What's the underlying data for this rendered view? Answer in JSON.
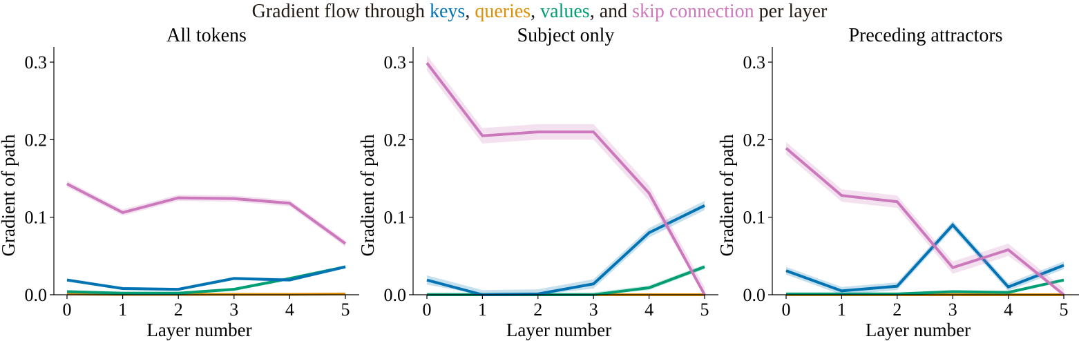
{
  "figure": {
    "title_parts": [
      {
        "text": "Gradient flow through ",
        "color": "#231a14"
      },
      {
        "text": "keys",
        "color": "#0173b2"
      },
      {
        "text": ", ",
        "color": "#231a14"
      },
      {
        "text": "queries",
        "color": "#de8f05"
      },
      {
        "text": ", ",
        "color": "#231a14"
      },
      {
        "text": "values",
        "color": "#029e73"
      },
      {
        "text": ", and ",
        "color": "#231a14"
      },
      {
        "text": "skip connection",
        "color": "#cc78bc"
      },
      {
        "text": " per layer",
        "color": "#231a14"
      }
    ]
  },
  "colors": {
    "keys": "#0173b2",
    "queries": "#de8f05",
    "values": "#029e73",
    "skip": "#cc78bc"
  },
  "chart_data": [
    {
      "type": "line",
      "title": "All tokens",
      "xlabel": "Layer number",
      "ylabel": "Gradient of path",
      "x": [
        0,
        1,
        2,
        3,
        4,
        5
      ],
      "xticks": [
        "0",
        "1",
        "2",
        "3",
        "4",
        "5"
      ],
      "yticks": [
        "0.0",
        "0.1",
        "0.2",
        "0.3"
      ],
      "ylim": [
        0,
        0.32
      ],
      "grid": false,
      "series": [
        {
          "name": "keys",
          "values": [
            0.019,
            0.008,
            0.007,
            0.021,
            0.019,
            0.036
          ],
          "ci": 0.002
        },
        {
          "name": "queries",
          "values": [
            0.001,
            0.0005,
            0.0005,
            0.0005,
            0.0005,
            0.001
          ],
          "ci": 0.0005
        },
        {
          "name": "values",
          "values": [
            0.004,
            0.002,
            0.002,
            0.007,
            0.021,
            0.036
          ],
          "ci": 0.002
        },
        {
          "name": "skip connection",
          "values": [
            0.143,
            0.106,
            0.125,
            0.124,
            0.118,
            0.066
          ],
          "ci": 0.004
        }
      ]
    },
    {
      "type": "line",
      "title": "Subject only",
      "xlabel": "Layer number",
      "ylabel": "Gradient of path",
      "x": [
        0,
        1,
        2,
        3,
        4,
        5
      ],
      "xticks": [
        "0",
        "1",
        "2",
        "3",
        "4",
        "5"
      ],
      "yticks": [
        "0.0",
        "0.1",
        "0.2",
        "0.3"
      ],
      "ylim": [
        0,
        0.32
      ],
      "grid": false,
      "series": [
        {
          "name": "keys",
          "values": [
            0.019,
            0.0,
            0.001,
            0.014,
            0.08,
            0.115
          ],
          "ci": 0.006
        },
        {
          "name": "queries",
          "values": [
            0.0,
            0.0,
            0.0,
            0.0,
            0.0,
            0.0
          ],
          "ci": 0.0
        },
        {
          "name": "values",
          "values": [
            0.0,
            0.0,
            0.0,
            0.0,
            0.009,
            0.036
          ],
          "ci": 0.003
        },
        {
          "name": "skip connection",
          "values": [
            0.299,
            0.205,
            0.21,
            0.21,
            0.131,
            0.0
          ],
          "ci": 0.01
        }
      ]
    },
    {
      "type": "line",
      "title": "Preceding attractors",
      "xlabel": "Layer number",
      "ylabel": "Gradient of path",
      "x": [
        0,
        1,
        2,
        3,
        4,
        5
      ],
      "xticks": [
        "0",
        "1",
        "2",
        "3",
        "4",
        "5"
      ],
      "yticks": [
        "0.0",
        "0.1",
        "0.2",
        "0.3"
      ],
      "ylim": [
        0,
        0.32
      ],
      "grid": false,
      "series": [
        {
          "name": "keys",
          "values": [
            0.031,
            0.005,
            0.011,
            0.09,
            0.01,
            0.038
          ],
          "ci": 0.005
        },
        {
          "name": "queries",
          "values": [
            0.0,
            0.0,
            0.0,
            0.0,
            0.0,
            0.0
          ],
          "ci": 0.0
        },
        {
          "name": "values",
          "values": [
            0.001,
            0.001,
            0.001,
            0.004,
            0.003,
            0.019
          ],
          "ci": 0.002
        },
        {
          "name": "skip connection",
          "values": [
            0.189,
            0.128,
            0.12,
            0.035,
            0.058,
            0.0
          ],
          "ci": 0.008
        }
      ]
    }
  ]
}
